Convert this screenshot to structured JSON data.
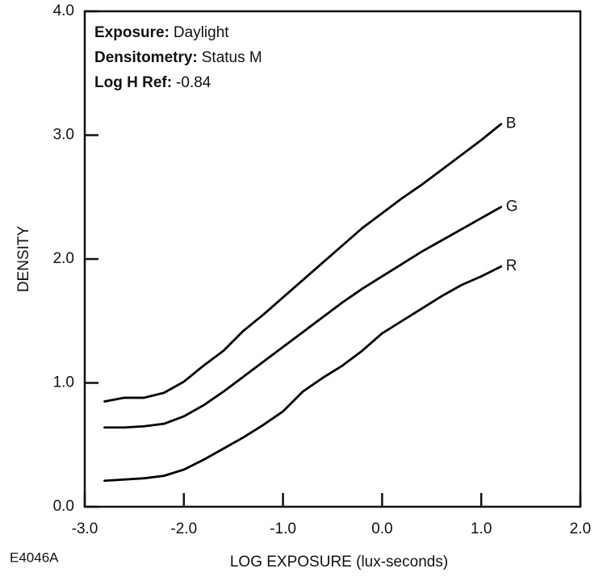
{
  "chart_data": {
    "type": "line",
    "annotations": [
      {
        "label": "Exposure:",
        "text": "Daylight"
      },
      {
        "label": "Densitometry:",
        "text": "Status M"
      },
      {
        "label": "Log H Ref:",
        "text": "-0.84"
      }
    ],
    "x_label": "LOG EXPOSURE (lux-seconds)",
    "y_label": "DENSITY",
    "figure_id": "E4046A",
    "x": [
      -2.8,
      -2.6,
      -2.4,
      -2.2,
      -2.0,
      -1.8,
      -1.6,
      -1.4,
      -1.2,
      -1.0,
      -0.8,
      -0.6,
      -0.4,
      -0.2,
      0.0,
      0.2,
      0.4,
      0.6,
      0.8,
      1.0,
      1.2
    ],
    "series": [
      {
        "name": "B",
        "color": "#000000",
        "values": [
          0.85,
          0.88,
          0.88,
          0.92,
          1.01,
          1.14,
          1.26,
          1.42,
          1.55,
          1.69,
          1.83,
          1.97,
          2.11,
          2.25,
          2.37,
          2.49,
          2.6,
          2.72,
          2.84,
          2.96,
          3.09
        ]
      },
      {
        "name": "G",
        "color": "#000000",
        "values": [
          0.64,
          0.64,
          0.65,
          0.67,
          0.73,
          0.82,
          0.93,
          1.05,
          1.17,
          1.29,
          1.41,
          1.53,
          1.65,
          1.76,
          1.86,
          1.96,
          2.06,
          2.15,
          2.24,
          2.33,
          2.42
        ]
      },
      {
        "name": "R",
        "color": "#000000",
        "values": [
          0.21,
          0.22,
          0.23,
          0.25,
          0.3,
          0.38,
          0.47,
          0.56,
          0.66,
          0.77,
          0.93,
          1.04,
          1.14,
          1.26,
          1.4,
          1.5,
          1.6,
          1.7,
          1.79,
          1.86,
          1.94
        ]
      }
    ],
    "xlim": [
      -3,
      2
    ],
    "ylim": [
      0,
      4
    ],
    "xticks": [
      {
        "value": -3,
        "label": "-3.0"
      },
      {
        "value": -2,
        "label": "-2.0"
      },
      {
        "value": -1,
        "label": "-1.0"
      },
      {
        "value": 0,
        "label": "0.0"
      },
      {
        "value": 1,
        "label": "1.0"
      },
      {
        "value": 2,
        "label": "2.0"
      }
    ],
    "yticks": [
      {
        "value": 0,
        "label": "0.0"
      },
      {
        "value": 1,
        "label": "1.0"
      },
      {
        "value": 2,
        "label": "2.0"
      },
      {
        "value": 3,
        "label": "3.0"
      },
      {
        "value": 4,
        "label": "4.0"
      }
    ]
  }
}
